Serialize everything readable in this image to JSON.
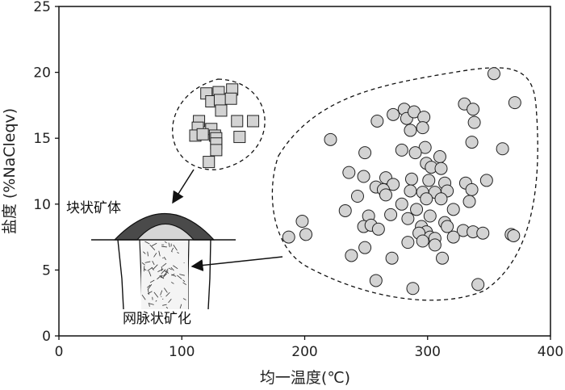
{
  "chart_data": {
    "type": "scatter",
    "xlabel": "均一温度(℃)",
    "ylabel": "盐度 (%NaCleqv)",
    "xlim": [
      0,
      400
    ],
    "ylim": [
      0,
      25
    ],
    "xticks": [
      "0",
      "100",
      "200",
      "300",
      "400"
    ],
    "yticks": [
      "0",
      "5",
      "10",
      "15",
      "20",
      "25"
    ],
    "grid": false,
    "annotations": [
      "块状矿体",
      "网脉状矿化"
    ],
    "series": [
      {
        "marker": "square",
        "color": "#d3d3d3",
        "points": [
          [
            120,
            18.4
          ],
          [
            130,
            18.5
          ],
          [
            141,
            18.7
          ],
          [
            124,
            17.8
          ],
          [
            131,
            17.9
          ],
          [
            140,
            18.0
          ],
          [
            132,
            17.1
          ],
          [
            145,
            16.3
          ],
          [
            158,
            16.3
          ],
          [
            114,
            16.3
          ],
          [
            113,
            15.8
          ],
          [
            124,
            15.7
          ],
          [
            111,
            15.2
          ],
          [
            117,
            15.3
          ],
          [
            127,
            15.2
          ],
          [
            128,
            15.0
          ],
          [
            147,
            15.1
          ],
          [
            128,
            14.6
          ],
          [
            128,
            14.1
          ],
          [
            122,
            13.2
          ]
        ]
      },
      {
        "marker": "circle",
        "color": "#d3d3d3",
        "points": [
          [
            354,
            19.9
          ],
          [
            371,
            17.7
          ],
          [
            330,
            17.6
          ],
          [
            337,
            17.2
          ],
          [
            338,
            16.2
          ],
          [
            272,
            16.8
          ],
          [
            281,
            17.2
          ],
          [
            283,
            16.5
          ],
          [
            289,
            17.0
          ],
          [
            297,
            16.6
          ],
          [
            296,
            15.8
          ],
          [
            286,
            15.6
          ],
          [
            259,
            16.3
          ],
          [
            221,
            14.9
          ],
          [
            336,
            14.7
          ],
          [
            361,
            14.2
          ],
          [
            298,
            14.3
          ],
          [
            290,
            13.9
          ],
          [
            279,
            14.1
          ],
          [
            249,
            13.9
          ],
          [
            310,
            13.6
          ],
          [
            299,
            13.1
          ],
          [
            303,
            12.8
          ],
          [
            311,
            12.7
          ],
          [
            236,
            12.4
          ],
          [
            248,
            12.1
          ],
          [
            266,
            12.0
          ],
          [
            287,
            11.9
          ],
          [
            301,
            11.8
          ],
          [
            314,
            11.6
          ],
          [
            331,
            11.6
          ],
          [
            348,
            11.8
          ],
          [
            272,
            11.5
          ],
          [
            258,
            11.3
          ],
          [
            264,
            11.1
          ],
          [
            286,
            11.0
          ],
          [
            296,
            10.9
          ],
          [
            306,
            10.9
          ],
          [
            336,
            11.1
          ],
          [
            316,
            11.0
          ],
          [
            243,
            10.6
          ],
          [
            266,
            10.7
          ],
          [
            299,
            10.4
          ],
          [
            311,
            10.4
          ],
          [
            334,
            10.2
          ],
          [
            279,
            10.0
          ],
          [
            291,
            9.6
          ],
          [
            233,
            9.5
          ],
          [
            252,
            9.1
          ],
          [
            270,
            9.2
          ],
          [
            284,
            8.9
          ],
          [
            302,
            9.1
          ],
          [
            321,
            9.6
          ],
          [
            198,
            8.7
          ],
          [
            314,
            8.6
          ],
          [
            295,
            8.3
          ],
          [
            299,
            7.9
          ],
          [
            316,
            8.3
          ],
          [
            329,
            8.0
          ],
          [
            337,
            7.9
          ],
          [
            345,
            7.8
          ],
          [
            368,
            7.7
          ],
          [
            370,
            7.6
          ],
          [
            187,
            7.5
          ],
          [
            201,
            7.7
          ],
          [
            248,
            8.3
          ],
          [
            254,
            8.4
          ],
          [
            260,
            8.1
          ],
          [
            293,
            7.8
          ],
          [
            302,
            7.5
          ],
          [
            306,
            7.4
          ],
          [
            321,
            7.5
          ],
          [
            284,
            7.1
          ],
          [
            296,
            7.2
          ],
          [
            249,
            6.7
          ],
          [
            306,
            6.9
          ],
          [
            238,
            6.1
          ],
          [
            271,
            5.9
          ],
          [
            312,
            5.9
          ],
          [
            258,
            4.2
          ],
          [
            341,
            3.9
          ],
          [
            288,
            3.6
          ]
        ]
      }
    ]
  }
}
